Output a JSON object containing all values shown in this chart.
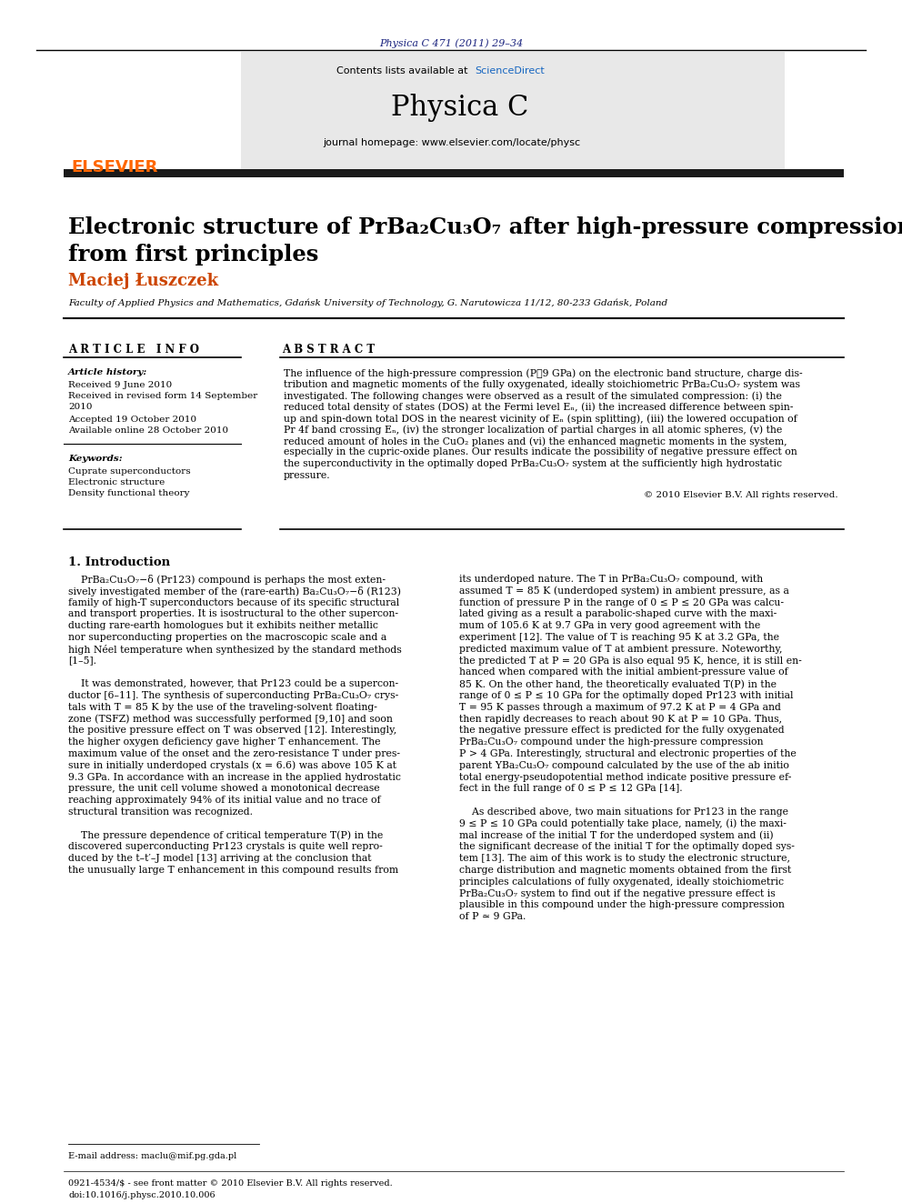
{
  "page_bg": "#ffffff",
  "top_journal_ref": "Physica C 471 (2011) 29–34",
  "top_journal_ref_color": "#1a237e",
  "contents_text": "Contents lists available at ",
  "sciencedirect_text": "ScienceDirect",
  "sciencedirect_color": "#1565c0",
  "journal_name": "Physica C",
  "journal_homepage": "journal homepage: www.elsevier.com/locate/physc",
  "header_bg": "#e8e8e8",
  "dark_bar_color": "#1a1a1a",
  "author": "Maciej Łuszczek",
  "author_color": "#cc4400",
  "affiliation": "Faculty of Applied Physics and Mathematics, Gdańsk University of Technology, G. Narutowicza 11/12, 80-233 Gdańsk, Poland",
  "article_info_header": "A R T I C L E   I N F O",
  "abstract_header": "A B S T R A C T",
  "article_history_label": "Article history:",
  "received1": "Received 9 June 2010",
  "received2": "Received in revised form 14 September",
  "received2b": "2010",
  "accepted": "Accepted 19 October 2010",
  "available": "Available online 28 October 2010",
  "keywords_label": "Keywords:",
  "kw1": "Cuprate superconductors",
  "kw2": "Electronic structure",
  "kw3": "Density functional theory",
  "copyright": "© 2010 Elsevier B.V. All rights reserved.",
  "intro_header": "1. Introduction",
  "footer_left": "0921-4534/$ - see front matter © 2010 Elsevier B.V. All rights reserved.",
  "footer_doi": "doi:10.1016/j.physc.2010.10.006",
  "email_label": "E-mail address: maclu@mif.pg.gda.pl",
  "abstract_lines": [
    "The influence of the high-pressure compression (P≅9 GPa) on the electronic band structure, charge dis-",
    "tribution and magnetic moments of the fully oxygenated, ideally stoichiometric PrBa₂Cu₃O₇ system was",
    "investigated. The following changes were observed as a result of the simulated compression: (i) the",
    "reduced total density of states (DOS) at the Fermi level Eₙ, (ii) the increased difference between spin-",
    "up and spin-down total DOS in the nearest vicinity of Eₙ (spin splitting), (iii) the lowered occupation of",
    "Pr 4f band crossing Eₙ, (iv) the stronger localization of partial charges in all atomic spheres, (v) the",
    "reduced amount of holes in the CuO₂ planes and (vi) the enhanced magnetic moments in the system,",
    "especially in the cupric-oxide planes. Our results indicate the possibility of negative pressure effect on",
    "the superconductivity in the optimally doped PrBa₂Cu₃O₇ system at the sufficiently high hydrostatic",
    "pressure."
  ],
  "intro_col1_lines": [
    "    PrBa₂Cu₃O₇−δ (Pr123) compound is perhaps the most exten-",
    "sively investigated member of the (rare-earth) Ba₂Cu₃O₇−δ (R123)",
    "family of high-T⁣ superconductors because of its specific structural",
    "and transport properties. It is isostructural to the other supercon-",
    "ducting rare-earth homologues but it exhibits neither metallic",
    "nor superconducting properties on the macroscopic scale and a",
    "high Néel temperature when synthesized by the standard methods",
    "[1–5].",
    "",
    "    It was demonstrated, however, that Pr123 could be a supercon-",
    "ductor [6–11]. The synthesis of superconducting PrBa₂Cu₃O₇ crys-",
    "tals with T⁣ = 85 K by the use of the traveling-solvent floating-",
    "zone (TSFZ) method was successfully performed [9,10] and soon",
    "the positive pressure effect on T⁣ was observed [12]. Interestingly,",
    "the higher oxygen deficiency gave higher T⁣ enhancement. The",
    "maximum value of the onset and the zero-resistance T⁣ under pres-",
    "sure in initially underdoped crystals (x = 6.6) was above 105 K at",
    "9.3 GPa. In accordance with an increase in the applied hydrostatic",
    "pressure, the unit cell volume showed a monotonical decrease",
    "reaching approximately 94% of its initial value and no trace of",
    "structural transition was recognized.",
    "",
    "    The pressure dependence of critical temperature T⁣(P) in the",
    "discovered superconducting Pr123 crystals is quite well repro-",
    "duced by the t–t′–J model [13] arriving at the conclusion that",
    "the unusually large T⁣ enhancement in this compound results from"
  ],
  "intro_col2_lines": [
    "its underdoped nature. The T⁣ in PrBa₂Cu₃O₇ compound, with",
    "assumed T⁣ = 85 K (underdoped system) in ambient pressure, as a",
    "function of pressure P in the range of 0 ≤ P ≤ 20 GPa was calcu-",
    "lated giving as a result a parabolic-shaped curve with the maxi-",
    "mum of 105.6 K at 9.7 GPa in very good agreement with the",
    "experiment [12]. The value of T⁣ is reaching 95 K at 3.2 GPa, the",
    "predicted maximum value of T⁣ at ambient pressure. Noteworthy,",
    "the predicted T⁣ at P = 20 GPa is also equal 95 K, hence, it is still en-",
    "hanced when compared with the initial ambient-pressure value of",
    "85 K. On the other hand, the theoretically evaluated T⁣(P) in the",
    "range of 0 ≤ P ≤ 10 GPa for the optimally doped Pr123 with initial",
    "T⁣ = 95 K passes through a maximum of 97.2 K at P = 4 GPa and",
    "then rapidly decreases to reach about 90 K at P = 10 GPa. Thus,",
    "the negative pressure effect is predicted for the fully oxygenated",
    "PrBa₂Cu₃O₇ compound under the high-pressure compression",
    "P > 4 GPa. Interestingly, structural and electronic properties of the",
    "parent YBa₂Cu₃O₇ compound calculated by the use of the ab initio",
    "total energy-pseudopotential method indicate positive pressure ef-",
    "fect in the full range of 0 ≤ P ≤ 12 GPa [14].",
    "",
    "    As described above, two main situations for Pr123 in the range",
    "9 ≤ P ≤ 10 GPa could potentially take place, namely, (i) the maxi-",
    "mal increase of the initial T⁣ for the underdoped system and (ii)",
    "the significant decrease of the initial T⁣ for the optimally doped sys-",
    "tem [13]. The aim of this work is to study the electronic structure,",
    "charge distribution and magnetic moments obtained from the first",
    "principles calculations of fully oxygenated, ideally stoichiometric",
    "PrBa₂Cu₃O₇ system to find out if the negative pressure effect is",
    "plausible in this compound under the high-pressure compression",
    "of P ≃ 9 GPa."
  ]
}
